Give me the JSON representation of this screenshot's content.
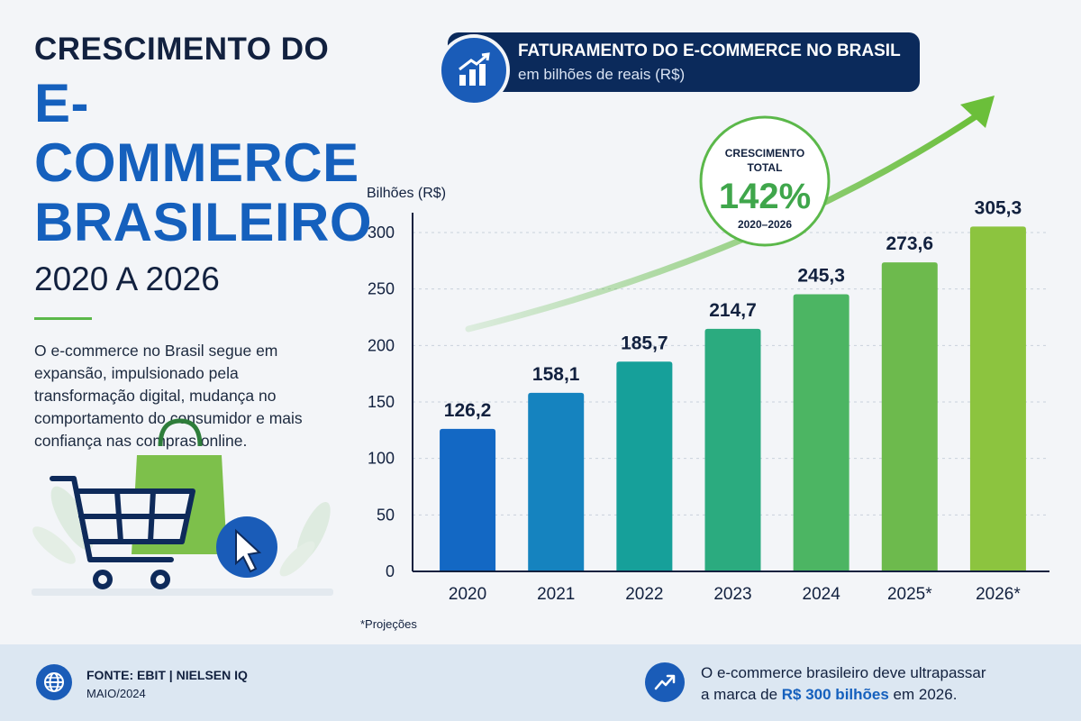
{
  "title": {
    "line1": "CRESCIMENTO DO",
    "line2": "E-COMMERCE",
    "line3": "BRASILEIRO",
    "line4": "2020 A 2026"
  },
  "description": "O e-commerce no Brasil segue em expansão, impulsionado pela transformação digital, mudança no comportamento do consumidor e mais confiança nas compras online.",
  "header": {
    "title": "FATURAMENTO DO E-COMMERCE NO BRASIL",
    "subtitle": "em bilhões de reais (R$)"
  },
  "growth_badge": {
    "label_line1": "CRESCIMENTO",
    "label_line2": "TOTAL",
    "value": "142%",
    "period": "2020–2026"
  },
  "footnote": "*Projeções",
  "footer": {
    "source": "FONTE: EBIT | NIELSEN IQ",
    "date": "MAIO/2024",
    "message_pre": "O e-commerce brasileiro deve ultrapassar",
    "message_mid": "a marca de ",
    "message_highlight": "R$ 300 bilhões",
    "message_post": " em 2026."
  },
  "colors": {
    "navy": "#0b2a5b",
    "blue": "#1560bd",
    "green": "#5bb84a",
    "bar_gradient": [
      "#1368c4",
      "#1583bf",
      "#16a09a",
      "#2bab7f",
      "#4cb563",
      "#6dba4d",
      "#8cc43f"
    ]
  },
  "chart_data": {
    "type": "bar",
    "ylabel": "Bilhões (R$)",
    "categories": [
      "2020",
      "2021",
      "2022",
      "2023",
      "2024",
      "2025*",
      "2026*"
    ],
    "values": [
      126.2,
      158.1,
      185.7,
      214.7,
      245.3,
      273.6,
      305.3
    ],
    "value_labels": [
      "126,2",
      "158,1",
      "185,7",
      "214,7",
      "245,3",
      "273,6",
      "305,3"
    ],
    "yticks": [
      0,
      50,
      100,
      150,
      200,
      250,
      300
    ],
    "ylim": [
      0,
      300
    ],
    "grid": true,
    "trend_arrow": true
  }
}
